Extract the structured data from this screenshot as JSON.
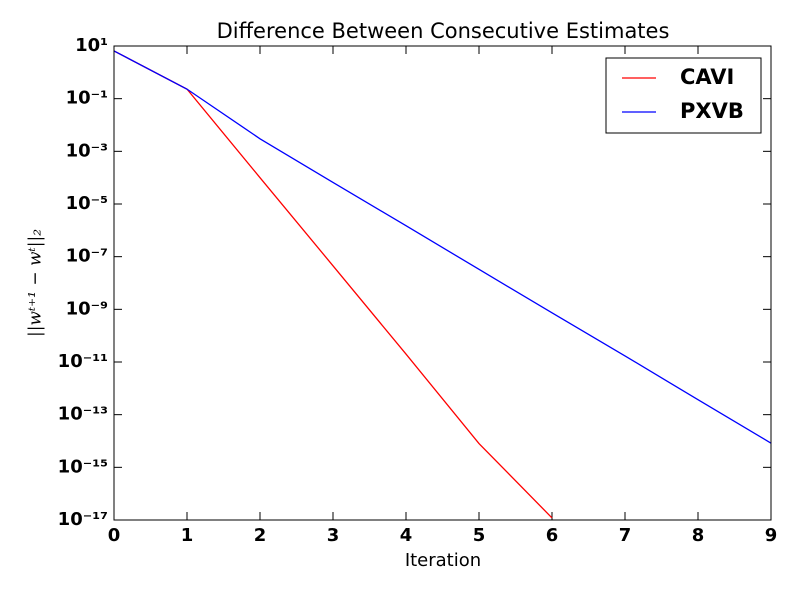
{
  "chart_data": {
    "type": "line",
    "title": "Difference Between Consecutive Estimates",
    "xlabel": "Iteration",
    "ylabel": "||wᵗ⁺¹ − wᵗ||₂",
    "x": [
      0,
      1,
      2,
      3,
      4,
      5,
      6,
      7,
      8,
      9
    ],
    "series": [
      {
        "name": "CAVI",
        "color": "#ff0000",
        "values": [
          6.5,
          0.23,
          0.0001,
          4.5e-08,
          2e-11,
          8e-15,
          1.2e-17,
          null,
          null,
          null
        ]
      },
      {
        "name": "PXVB",
        "color": "#0000ff",
        "values": [
          6.5,
          0.23,
          0.003,
          6.6e-05,
          1.5e-06,
          3.3e-08,
          7.4e-10,
          1.7e-11,
          3.7e-13,
          8.3e-15
        ]
      }
    ],
    "xlim": [
      0,
      9
    ],
    "xticks": [
      0,
      1,
      2,
      3,
      4,
      5,
      6,
      7,
      8,
      9
    ],
    "ylim": [
      1e-17,
      10
    ],
    "log_y": true,
    "yticks": [
      {
        "value": 10,
        "label": "10¹"
      },
      {
        "value": 0.1,
        "label": "10⁻¹"
      },
      {
        "value": 0.001,
        "label": "10⁻³"
      },
      {
        "value": 1e-05,
        "label": "10⁻⁵"
      },
      {
        "value": 1e-07,
        "label": "10⁻⁷"
      },
      {
        "value": 1e-09,
        "label": "10⁻⁹"
      },
      {
        "value": 1e-11,
        "label": "10⁻¹¹"
      },
      {
        "value": 1e-13,
        "label": "10⁻¹³"
      },
      {
        "value": 1e-15,
        "label": "10⁻¹⁵"
      },
      {
        "value": 1e-17,
        "label": "10⁻¹⁷"
      }
    ],
    "legend": "upper right",
    "grid": false
  }
}
